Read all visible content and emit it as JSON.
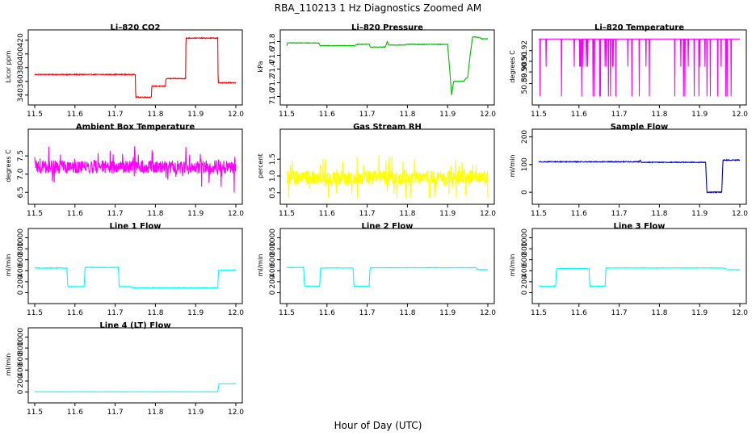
{
  "figure_title": "RBA_110213  1 Hz Diagnostics Zoomed AM",
  "x_axis_label": "Hour of Day (UTC)",
  "chart_data": [
    {
      "type": "line",
      "title": "Li–820 CO2",
      "ylabel": "Licor ppm",
      "color": "#ff0000",
      "xlim": [
        11.5,
        12.0
      ],
      "ylim": [
        335,
        428
      ],
      "xticks": [
        11.5,
        11.6,
        11.7,
        11.8,
        11.9,
        12.0
      ],
      "yticks": [
        {
          "v": 340,
          "label": "340"
        },
        {
          "v": 360,
          "label": "360"
        },
        {
          "v": 380,
          "label": "380"
        },
        {
          "v": 400,
          "label": "400"
        },
        {
          "v": 420,
          "label": "420"
        }
      ],
      "noise": 0.6,
      "spike_rate": 0,
      "series": [
        [
          11.5,
          370
        ],
        [
          11.75,
          370
        ],
        [
          11.751,
          337
        ],
        [
          11.79,
          337
        ],
        [
          11.791,
          353
        ],
        [
          11.825,
          353
        ],
        [
          11.826,
          364
        ],
        [
          11.875,
          364
        ],
        [
          11.876,
          423
        ],
        [
          11.955,
          423
        ],
        [
          11.956,
          358
        ],
        [
          12.0,
          358
        ]
      ]
    },
    {
      "type": "line",
      "title": "Li–820 Pressure",
      "ylabel": "kPa",
      "color": "#00bb00",
      "xlim": [
        11.5,
        12.0
      ],
      "ylim": [
        70.97,
        71.9
      ],
      "xticks": [
        11.5,
        11.6,
        11.7,
        11.8,
        11.9,
        12.0
      ],
      "yticks": [
        {
          "v": 71.0,
          "label": "71.0"
        },
        {
          "v": 71.2,
          "label": "71.2"
        },
        {
          "v": 71.4,
          "label": "71.4"
        },
        {
          "v": 71.6,
          "label": "71.6"
        },
        {
          "v": 71.8,
          "label": "71.8"
        }
      ],
      "noise": 0.004,
      "spike_rate": 0,
      "series": [
        [
          11.5,
          71.74
        ],
        [
          11.502,
          71.78
        ],
        [
          11.58,
          71.78
        ],
        [
          11.583,
          71.74
        ],
        [
          11.67,
          71.74
        ],
        [
          11.673,
          71.76
        ],
        [
          11.705,
          71.76
        ],
        [
          11.708,
          71.72
        ],
        [
          11.745,
          71.72
        ],
        [
          11.75,
          71.8
        ],
        [
          11.753,
          71.75
        ],
        [
          11.795,
          71.75
        ],
        [
          11.798,
          71.76
        ],
        [
          11.9,
          71.76
        ],
        [
          11.905,
          71.4
        ],
        [
          11.91,
          71.02
        ],
        [
          11.915,
          71.22
        ],
        [
          11.94,
          71.22
        ],
        [
          11.945,
          71.26
        ],
        [
          11.95,
          71.28
        ],
        [
          11.955,
          71.55
        ],
        [
          11.962,
          71.87
        ],
        [
          11.98,
          71.86
        ],
        [
          11.984,
          71.84
        ],
        [
          12.0,
          71.84
        ]
      ]
    },
    {
      "type": "line",
      "title": "Li–820 Temperature",
      "ylabel": "degrees C",
      "color": "#ff00ff",
      "xlim": [
        11.5,
        12.0
      ],
      "ylim": [
        50.875,
        50.935
      ],
      "xticks": [
        11.5,
        11.6,
        11.7,
        11.8,
        11.9,
        12.0
      ],
      "yticks": [
        {
          "v": 50.889,
          "label": "50.89"
        },
        {
          "v": 50.9,
          "label": "50.90"
        },
        {
          "v": 50.91,
          "label": "50.91"
        },
        {
          "v": 50.92,
          "label": "50.92"
        }
      ],
      "noise": 0,
      "spike_rate": 0,
      "quantized": {
        "high": 50.931,
        "mid": 50.905,
        "low": 50.877
      }
    },
    {
      "type": "line",
      "title": "Ambient Box Temperature",
      "ylabel": "degrees C",
      "color": "#ff00ff",
      "xlim": [
        11.5,
        12.0
      ],
      "ylim": [
        6.35,
        8.1
      ],
      "xticks": [
        11.5,
        11.6,
        11.7,
        11.8,
        11.9,
        12.0
      ],
      "yticks": [
        {
          "v": 6.5,
          "label": "6.5"
        },
        {
          "v": 7.0,
          "label": "7.0"
        },
        {
          "v": 7.5,
          "label": "7.5"
        }
      ],
      "noise": 0.18,
      "spike_rate": 0.1,
      "spike_size": 0.55,
      "series": [
        [
          11.5,
          7.2
        ],
        [
          12.0,
          7.2
        ]
      ]
    },
    {
      "type": "line",
      "title": "Gas Stream RH",
      "ylabel": "percent",
      "color": "#ffff00",
      "xlim": [
        11.5,
        12.0
      ],
      "ylim": [
        0.35,
        2.25
      ],
      "xticks": [
        11.5,
        11.6,
        11.7,
        11.8,
        11.9,
        12.0
      ],
      "yticks": [
        {
          "v": 0.5,
          "label": "0.5"
        },
        {
          "v": 1.0,
          "label": "1.0"
        },
        {
          "v": 1.5,
          "label": "1.5"
        }
      ],
      "noise": 0.22,
      "spike_rate": 0.12,
      "spike_size": 0.7,
      "series": [
        [
          11.5,
          0.95
        ],
        [
          12.0,
          0.95
        ]
      ]
    },
    {
      "type": "line",
      "title": "Sample Flow",
      "ylabel": "ml/min",
      "color": "#0000cc",
      "xlim": [
        11.5,
        12.0
      ],
      "ylim": [
        -20,
        210
      ],
      "xticks": [
        11.5,
        11.6,
        11.7,
        11.8,
        11.9,
        12.0
      ],
      "yticks": [
        {
          "v": 0,
          "label": "0"
        },
        {
          "v": 100,
          "label": "100"
        },
        {
          "v": 200,
          "label": "200"
        }
      ],
      "noise": 1.5,
      "spike_rate": 0,
      "series": [
        [
          11.5,
          110
        ],
        [
          11.75,
          110
        ],
        [
          11.752,
          116
        ],
        [
          11.755,
          108
        ],
        [
          11.915,
          108
        ],
        [
          11.918,
          0
        ],
        [
          11.955,
          0
        ],
        [
          11.958,
          116
        ],
        [
          12.0,
          116
        ]
      ]
    },
    {
      "type": "line",
      "title": "Line 1 Flow",
      "ylabel": "ml/min",
      "color": "#00ffff",
      "xlim": [
        11.5,
        12.0
      ],
      "ylim": [
        -80,
        1080
      ],
      "xticks": [
        11.5,
        11.6,
        11.7,
        11.8,
        11.9,
        12.0
      ],
      "yticks": [
        {
          "v": 0,
          "label": "0"
        },
        {
          "v": 200,
          "label": "200"
        },
        {
          "v": 400,
          "label": "400"
        },
        {
          "v": 600,
          "label": "600"
        },
        {
          "v": 800,
          "label": "800"
        },
        {
          "v": 1000,
          "label": "1000"
        }
      ],
      "noise": 6,
      "spike_rate": 0,
      "series": [
        [
          11.5,
          450
        ],
        [
          11.58,
          450
        ],
        [
          11.582,
          110
        ],
        [
          11.623,
          110
        ],
        [
          11.625,
          460
        ],
        [
          11.708,
          460
        ],
        [
          11.71,
          110
        ],
        [
          11.74,
          110
        ],
        [
          11.742,
          90
        ],
        [
          11.955,
          90
        ],
        [
          11.957,
          410
        ],
        [
          12.0,
          410
        ]
      ]
    },
    {
      "type": "line",
      "title": "Line 2 Flow",
      "ylabel": "ml/min",
      "color": "#00ffff",
      "xlim": [
        11.5,
        12.0
      ],
      "ylim": [
        -80,
        1080
      ],
      "xticks": [
        11.5,
        11.6,
        11.7,
        11.8,
        11.9,
        12.0
      ],
      "yticks": [
        {
          "v": 0,
          "label": "0"
        },
        {
          "v": 200,
          "label": "200"
        },
        {
          "v": 400,
          "label": "400"
        },
        {
          "v": 600,
          "label": "600"
        },
        {
          "v": 800,
          "label": "800"
        },
        {
          "v": 1000,
          "label": "1000"
        }
      ],
      "noise": 4,
      "spike_rate": 0,
      "series": [
        [
          11.5,
          460
        ],
        [
          11.542,
          460
        ],
        [
          11.544,
          120
        ],
        [
          11.582,
          120
        ],
        [
          11.584,
          450
        ],
        [
          11.665,
          450
        ],
        [
          11.667,
          120
        ],
        [
          11.705,
          120
        ],
        [
          11.707,
          455
        ],
        [
          11.97,
          455
        ],
        [
          11.975,
          420
        ],
        [
          12.0,
          420
        ]
      ]
    },
    {
      "type": "line",
      "title": "Line 3 Flow",
      "ylabel": "ml/min",
      "color": "#00ffff",
      "xlim": [
        11.5,
        12.0
      ],
      "ylim": [
        -80,
        1080
      ],
      "xticks": [
        11.5,
        11.6,
        11.7,
        11.8,
        11.9,
        12.0
      ],
      "yticks": [
        {
          "v": 0,
          "label": "0"
        },
        {
          "v": 200,
          "label": "200"
        },
        {
          "v": 400,
          "label": "400"
        },
        {
          "v": 600,
          "label": "600"
        },
        {
          "v": 800,
          "label": "800"
        },
        {
          "v": 1000,
          "label": "1000"
        }
      ],
      "noise": 4,
      "spike_rate": 0,
      "series": [
        [
          11.5,
          120
        ],
        [
          11.542,
          120
        ],
        [
          11.544,
          440
        ],
        [
          11.625,
          440
        ],
        [
          11.627,
          120
        ],
        [
          11.665,
          120
        ],
        [
          11.667,
          450
        ],
        [
          11.96,
          450
        ],
        [
          11.97,
          420
        ],
        [
          12.0,
          420
        ]
      ]
    },
    {
      "type": "line",
      "title": "Line 4 (LT) Flow",
      "ylabel": "ml/min",
      "color": "#00ffff",
      "xlim": [
        11.5,
        12.0
      ],
      "ylim": [
        -80,
        1080
      ],
      "xticks": [
        11.5,
        11.6,
        11.7,
        11.8,
        11.9,
        12.0
      ],
      "yticks": [
        {
          "v": 0,
          "label": "0"
        },
        {
          "v": 200,
          "label": "200"
        },
        {
          "v": 400,
          "label": "400"
        },
        {
          "v": 600,
          "label": "600"
        },
        {
          "v": 800,
          "label": "800"
        },
        {
          "v": 1000,
          "label": "1000"
        }
      ],
      "noise": 2,
      "spike_rate": 0,
      "series": [
        [
          11.5,
          5
        ],
        [
          11.955,
          5
        ],
        [
          11.958,
          150
        ],
        [
          12.0,
          150
        ]
      ]
    }
  ]
}
